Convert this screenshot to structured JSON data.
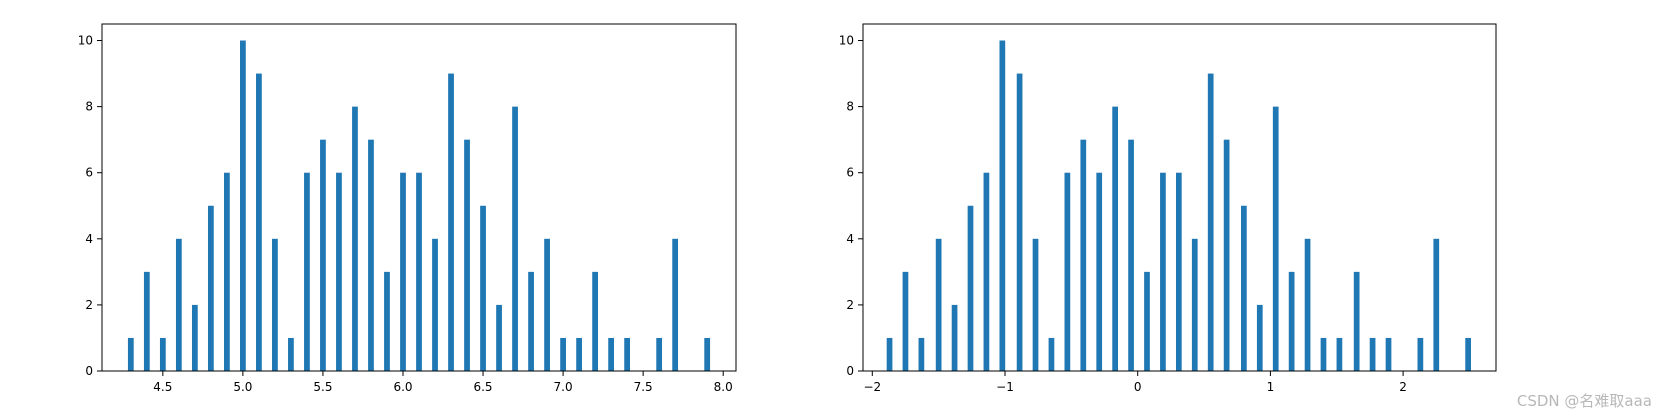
{
  "watermark": "CSDN @名难取aaa",
  "colors": {
    "bar": "#1f77b4",
    "axis": "#000000",
    "background": "#ffffff"
  },
  "chart_data": [
    {
      "type": "bar",
      "title": "",
      "xlabel": "",
      "ylabel": "",
      "grid": false,
      "xlim": [
        4.12,
        8.08
      ],
      "ylim": [
        0,
        10.5
      ],
      "bar_width": 0.036,
      "xticks": [
        4.5,
        5.0,
        5.5,
        6.0,
        6.5,
        7.0,
        7.5,
        8.0
      ],
      "xtick_labels": [
        "4.5",
        "5.0",
        "5.5",
        "6.0",
        "6.5",
        "7.0",
        "7.5",
        "8.0"
      ],
      "yticks": [
        0,
        2,
        4,
        6,
        8,
        10
      ],
      "ytick_labels": [
        "0",
        "2",
        "4",
        "6",
        "8",
        "10"
      ],
      "x": [
        4.3,
        4.4,
        4.5,
        4.6,
        4.7,
        4.8,
        4.9,
        5.0,
        5.1,
        5.2,
        5.3,
        5.4,
        5.5,
        5.6,
        5.7,
        5.8,
        5.9,
        6.0,
        6.1,
        6.2,
        6.3,
        6.4,
        6.5,
        6.6,
        6.7,
        6.8,
        6.9,
        7.0,
        7.1,
        7.2,
        7.3,
        7.4,
        7.6,
        7.7,
        7.9
      ],
      "values": [
        1,
        3,
        1,
        4,
        2,
        5,
        6,
        10,
        9,
        4,
        1,
        6,
        7,
        6,
        8,
        7,
        3,
        6,
        6,
        4,
        9,
        7,
        5,
        2,
        8,
        3,
        4,
        1,
        1,
        3,
        1,
        1,
        1,
        4,
        1
      ]
    },
    {
      "type": "bar",
      "title": "",
      "xlabel": "",
      "ylabel": "",
      "grid": false,
      "xlim": [
        -2.07,
        2.7
      ],
      "ylim": [
        0,
        10.5
      ],
      "bar_width": 0.043,
      "xticks": [
        -2,
        -1,
        0,
        1,
        2
      ],
      "xtick_labels": [
        "−2",
        "−1",
        "0",
        "1",
        "2"
      ],
      "yticks": [
        0,
        2,
        4,
        6,
        8,
        10
      ],
      "ytick_labels": [
        "0",
        "2",
        "4",
        "6",
        "8",
        "10"
      ],
      "x": [
        -1.87,
        -1.75,
        -1.63,
        -1.5,
        -1.38,
        -1.26,
        -1.14,
        -1.02,
        -0.89,
        -0.77,
        -0.65,
        -0.53,
        -0.41,
        -0.29,
        -0.17,
        -0.05,
        0.07,
        0.19,
        0.31,
        0.43,
        0.55,
        0.67,
        0.8,
        0.92,
        1.04,
        1.16,
        1.28,
        1.4,
        1.52,
        1.65,
        1.77,
        1.89,
        2.13,
        2.25,
        2.49
      ],
      "values": [
        1,
        3,
        1,
        4,
        2,
        5,
        6,
        10,
        9,
        4,
        1,
        6,
        7,
        6,
        8,
        7,
        3,
        6,
        6,
        4,
        9,
        7,
        5,
        2,
        8,
        3,
        4,
        1,
        1,
        3,
        1,
        1,
        1,
        4,
        1
      ]
    }
  ]
}
